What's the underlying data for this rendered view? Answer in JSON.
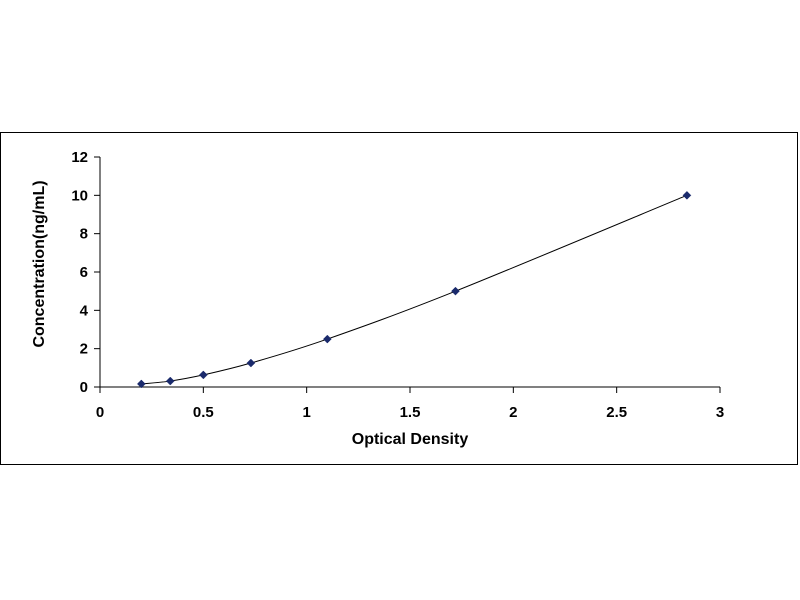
{
  "chart_data": {
    "type": "line",
    "title": "",
    "xlabel": "Optical Density",
    "ylabel": "Concentration(ng/mL)",
    "xlim": [
      0,
      3
    ],
    "ylim": [
      0,
      12
    ],
    "x_ticks": [
      "0",
      "0.5",
      "1",
      "1.5",
      "2",
      "2.5",
      "3"
    ],
    "y_ticks": [
      "0",
      "2",
      "4",
      "6",
      "8",
      "10",
      "12"
    ],
    "grid": false,
    "legend": "none",
    "series": [
      {
        "x": [
          0.2,
          0.34,
          0.5,
          0.73,
          1.1,
          1.72,
          2.84
        ],
        "y": [
          0.16,
          0.31,
          0.63,
          1.25,
          2.5,
          5,
          10
        ],
        "marker": "diamond",
        "color": "#1a2a6c",
        "line_color": "#000000",
        "smooth": true
      }
    ]
  }
}
